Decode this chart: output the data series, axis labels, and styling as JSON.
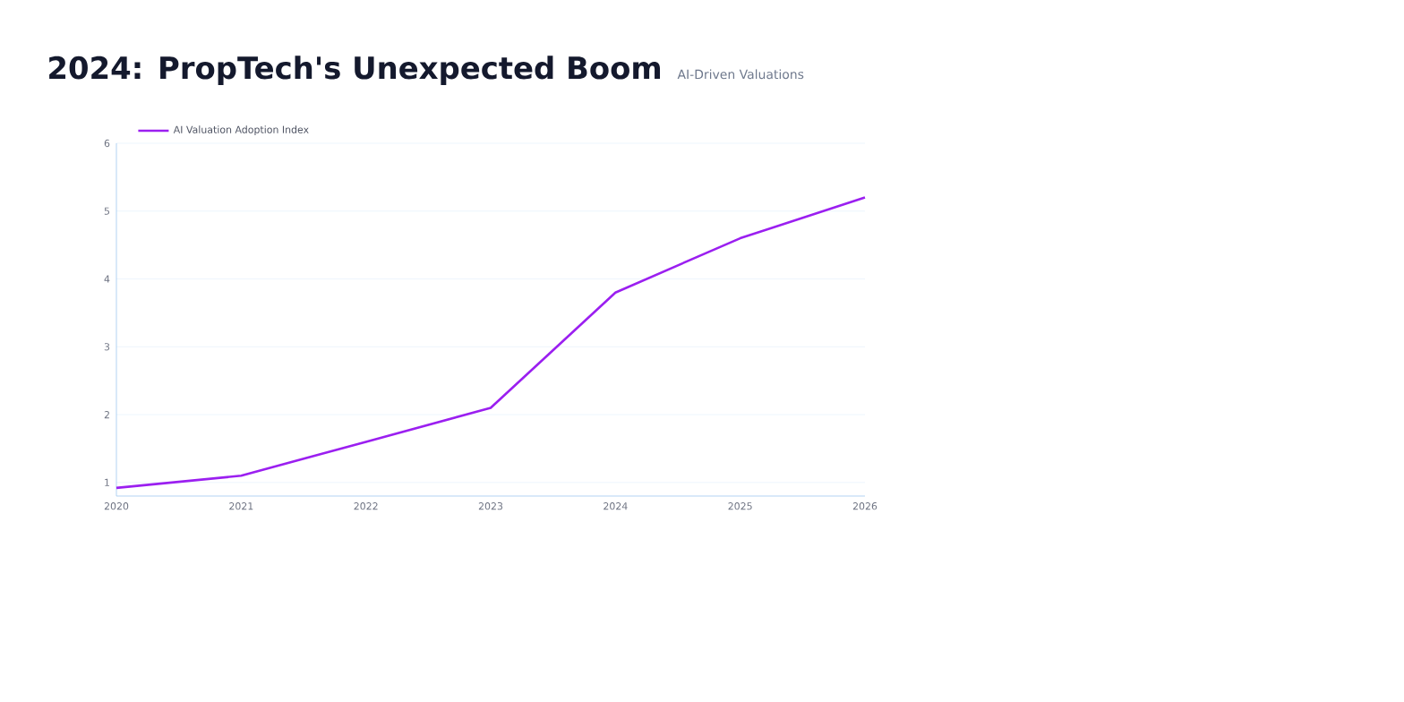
{
  "chart_data": {
    "type": "line",
    "title": "2024: PropTech's Unexpected Boom",
    "subtitle": "AI-Driven Valuations",
    "x": [
      2020,
      2021,
      2022,
      2023,
      2024,
      2025,
      2026
    ],
    "series": [
      {
        "name": "AI Valuation Adoption Index",
        "color": "#9b1ff0",
        "values": [
          0.92,
          1.1,
          1.6,
          2.1,
          3.8,
          4.6,
          5.2
        ]
      }
    ],
    "xlim": [
      2020,
      2026
    ],
    "xticks": [
      2020,
      2021,
      2022,
      2023,
      2024,
      2025,
      2026
    ],
    "ylim": [
      0.8,
      6
    ],
    "yticks": [
      1,
      2,
      3,
      4,
      5,
      6
    ],
    "grid": "y",
    "legend": "top left",
    "marker": "none",
    "line_style": "solid"
  }
}
